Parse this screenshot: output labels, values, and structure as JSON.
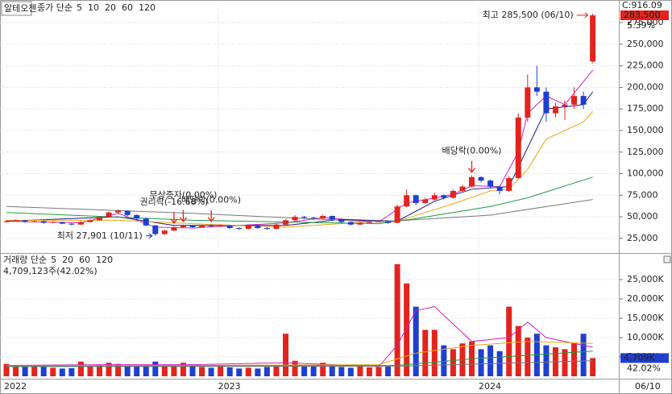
{
  "header": {
    "title": "알테오젠"
  },
  "chart_data": [
    {
      "type": "candlestick",
      "ma_label": "종가 단순",
      "categories": [
        "2022",
        null,
        null,
        null,
        null,
        null,
        null,
        null,
        null,
        null,
        null,
        null,
        null,
        null,
        null,
        null,
        null,
        null,
        null,
        null,
        null,
        null,
        null,
        "2023",
        null,
        null,
        null,
        null,
        null,
        null,
        null,
        null,
        null,
        null,
        null,
        null,
        null,
        null,
        null,
        null,
        null,
        null,
        null,
        null,
        null,
        null,
        null,
        null,
        null,
        null,
        null,
        "2024",
        null,
        null,
        null,
        null,
        null,
        null,
        null,
        null,
        null,
        null,
        null,
        "06/10"
      ],
      "open": [
        44000,
        45000,
        46000,
        44000,
        45000,
        43000,
        44000,
        42000,
        41000,
        44000,
        46000,
        50000,
        55000,
        57000,
        52000,
        48000,
        40000,
        30000,
        34000,
        38000,
        40000,
        38000,
        40000,
        39000,
        40000,
        37000,
        36000,
        40000,
        37000,
        36000,
        41000,
        46000,
        50000,
        49000,
        48000,
        51000,
        47000,
        44000,
        41000,
        43000,
        44000,
        45000,
        43000,
        62000,
        75000,
        66000,
        70000,
        75000,
        72000,
        80000,
        85000,
        96000,
        92000,
        85000,
        80000,
        95000,
        165000,
        200000,
        195000,
        170000,
        178000,
        180000,
        190000,
        230000
      ],
      "high": [
        46500,
        47000,
        46500,
        45500,
        45500,
        45000,
        44500,
        42500,
        45000,
        47000,
        51000,
        56000,
        58500,
        57500,
        53000,
        48500,
        40500,
        35000,
        39000,
        41000,
        40500,
        41000,
        41000,
        41500,
        40500,
        38000,
        41000,
        40500,
        38000,
        42000,
        47000,
        52000,
        51000,
        50000,
        52500,
        51500,
        47500,
        44500,
        44000,
        45000,
        46000,
        45500,
        64000,
        82000,
        76000,
        72000,
        78000,
        76000,
        82000,
        87000,
        98000,
        97000,
        93000,
        86000,
        97000,
        170000,
        215000,
        225000,
        200000,
        182000,
        185000,
        200000,
        195000,
        285500
      ],
      "low": [
        43000,
        44500,
        43000,
        43500,
        42000,
        42500,
        41500,
        40000,
        40500,
        43500,
        45500,
        49000,
        53000,
        51000,
        47000,
        39000,
        27901,
        29000,
        33500,
        37000,
        37000,
        37500,
        38000,
        38500,
        36000,
        35000,
        35500,
        36000,
        35000,
        35500,
        40500,
        45000,
        47500,
        46500,
        47500,
        46000,
        43000,
        40000,
        40500,
        42500,
        43500,
        42000,
        42500,
        61000,
        64000,
        65000,
        69000,
        70000,
        71000,
        79000,
        84000,
        90000,
        83000,
        76000,
        79000,
        94000,
        160000,
        190000,
        160000,
        165000,
        162000,
        175000,
        175000,
        228000
      ],
      "close": [
        45000,
        46000,
        44000,
        45000,
        43000,
        44000,
        42000,
        41000,
        44000,
        46000,
        50000,
        55000,
        57000,
        52000,
        48000,
        40000,
        30000,
        34000,
        38000,
        40000,
        38000,
        40000,
        39000,
        40000,
        37000,
        36000,
        40000,
        37000,
        36000,
        41000,
        46000,
        50000,
        49000,
        48000,
        51000,
        47000,
        44000,
        41000,
        43000,
        44000,
        45000,
        43000,
        62000,
        75000,
        66000,
        70000,
        75000,
        72000,
        80000,
        85000,
        96000,
        92000,
        85000,
        80000,
        95000,
        165000,
        200000,
        195000,
        170000,
        178000,
        180000,
        190000,
        180000,
        283500
      ],
      "up_color": "#e3231d",
      "down_color": "#1f3fd0",
      "ylim": [
        9000,
        297500
      ],
      "yticks": [
        {
          "value": 25000,
          "label": "25,000"
        },
        {
          "value": 50000,
          "label": "50,000"
        },
        {
          "value": 75000,
          "label": "75,000"
        },
        {
          "value": 100000,
          "label": "100,000"
        },
        {
          "value": 125000,
          "label": "125,000"
        },
        {
          "value": 150000,
          "label": "150,000"
        },
        {
          "value": 175000,
          "label": "175,000"
        },
        {
          "value": 200000,
          "label": "200,000"
        },
        {
          "value": 225000,
          "label": "225,000"
        },
        {
          "value": 250000,
          "label": "250,000"
        },
        {
          "value": 275000,
          "label": "275,000"
        }
      ],
      "grid": true,
      "moving_averages": [
        {
          "name": "5",
          "color": "#d21fc4",
          "x": [
            0,
            8,
            12,
            16,
            20,
            30,
            34,
            40,
            43,
            48,
            50,
            53,
            55,
            56,
            58,
            60,
            63
          ],
          "values": [
            45000,
            43000,
            54000,
            38000,
            37000,
            43000,
            49000,
            44000,
            66000,
            76000,
            86000,
            85000,
            125000,
            170000,
            190000,
            180000,
            220000
          ]
        },
        {
          "name": "10",
          "color": "#1a1a8c",
          "x": [
            0,
            12,
            18,
            30,
            36,
            42,
            46,
            50,
            54,
            56,
            58,
            62,
            63
          ],
          "values": [
            45000,
            50000,
            40000,
            40000,
            47000,
            45000,
            68000,
            82000,
            85000,
            130000,
            175000,
            180000,
            195000
          ]
        },
        {
          "name": "20",
          "color": "#e7a712",
          "x": [
            0,
            12,
            20,
            30,
            40,
            42,
            48,
            52,
            54,
            56,
            58,
            62,
            63
          ],
          "values": [
            46000,
            46000,
            42000,
            38000,
            45000,
            45000,
            65000,
            80000,
            82000,
            105000,
            140000,
            160000,
            172000
          ]
        },
        {
          "name": "60",
          "color": "#1f9a3a",
          "x": [
            0,
            20,
            40,
            44,
            52,
            56,
            63
          ],
          "values": [
            55000,
            46000,
            42000,
            48000,
            62000,
            72000,
            96000
          ]
        },
        {
          "name": "120",
          "color": "#777777",
          "x": [
            0,
            20,
            40,
            52,
            63
          ],
          "values": [
            62000,
            54000,
            44000,
            52000,
            70000
          ]
        }
      ],
      "high_note": {
        "text": "최고 285,500 (06/10)",
        "x": 63,
        "y": 285500
      },
      "low_note": {
        "text": "최저 27,901 (10/11)",
        "x": 16,
        "y": 27901
      },
      "events": [
        {
          "text": "권리락(-16.68%)",
          "x": 18,
          "y": 39000
        },
        {
          "text": "무상증자(0.00%)",
          "x": 19,
          "y": 41000
        },
        {
          "text": "배당락(0.00%)",
          "x": 22,
          "y": 41000
        },
        {
          "text": "배당락(0.00%)",
          "x": 50,
          "y": 98000
        }
      ],
      "index_label": "C:916.09",
      "last_price": {
        "value": 283500,
        "label": "283,500"
      },
      "change_label": "5.39%"
    },
    {
      "type": "volume",
      "ma_label": "거래량 단순",
      "info": "4,709,123주(42.02%)",
      "values": [
        3200,
        2800,
        2500,
        2600,
        2400,
        2200,
        2000,
        2100,
        3800,
        2500,
        3000,
        3500,
        3200,
        2800,
        2600,
        3000,
        3800,
        2600,
        2800,
        3500,
        3000,
        2400,
        2200,
        2500,
        2300,
        2000,
        2200,
        2000,
        2400,
        2800,
        11000,
        4000,
        3000,
        2800,
        3500,
        2600,
        2400,
        2200,
        2500,
        2300,
        2400,
        2600,
        29000,
        24000,
        18000,
        12000,
        12000,
        8000,
        7000,
        8500,
        9000,
        7000,
        8000,
        6500,
        18000,
        13000,
        10000,
        11000,
        8000,
        7500,
        7000,
        8500,
        11000,
        4709
      ],
      "up_color": "#e3231d",
      "down_color": "#1f3fd0",
      "ylim": [
        0,
        30625
      ],
      "yticks": [
        {
          "value": 5000,
          "label": "5,000K"
        },
        {
          "value": 10000,
          "label": "10,000K"
        },
        {
          "value": 15000,
          "label": "15,000K"
        },
        {
          "value": 20000,
          "label": "20,000K"
        },
        {
          "value": 25000,
          "label": "25,000K"
        }
      ],
      "grid": true,
      "moving_averages": [
        {
          "name": "5",
          "color": "#d21fc4",
          "x": [
            0,
            10,
            20,
            30,
            40,
            42,
            44,
            46,
            50,
            54,
            56,
            58,
            62,
            63
          ],
          "values": [
            2800,
            3000,
            3000,
            3500,
            2500,
            8000,
            17000,
            18000,
            9000,
            10000,
            14000,
            10000,
            8000,
            7500
          ]
        },
        {
          "name": "20",
          "color": "#e7a712",
          "x": [
            0,
            20,
            40,
            44,
            50,
            56,
            63
          ],
          "values": [
            2700,
            2800,
            3000,
            6000,
            8000,
            9000,
            8500
          ]
        },
        {
          "name": "60",
          "color": "#1f9a3a",
          "x": [
            0,
            30,
            42,
            50,
            63
          ],
          "values": [
            2600,
            2700,
            2800,
            4500,
            6500
          ]
        },
        {
          "name": "120",
          "color": "#777777",
          "x": [
            0,
            42,
            63
          ],
          "values": [
            2500,
            2600,
            4000
          ]
        }
      ],
      "last_volume": {
        "value": 4709,
        "label": "4,709K"
      },
      "ratio_label": "42.02%"
    }
  ]
}
